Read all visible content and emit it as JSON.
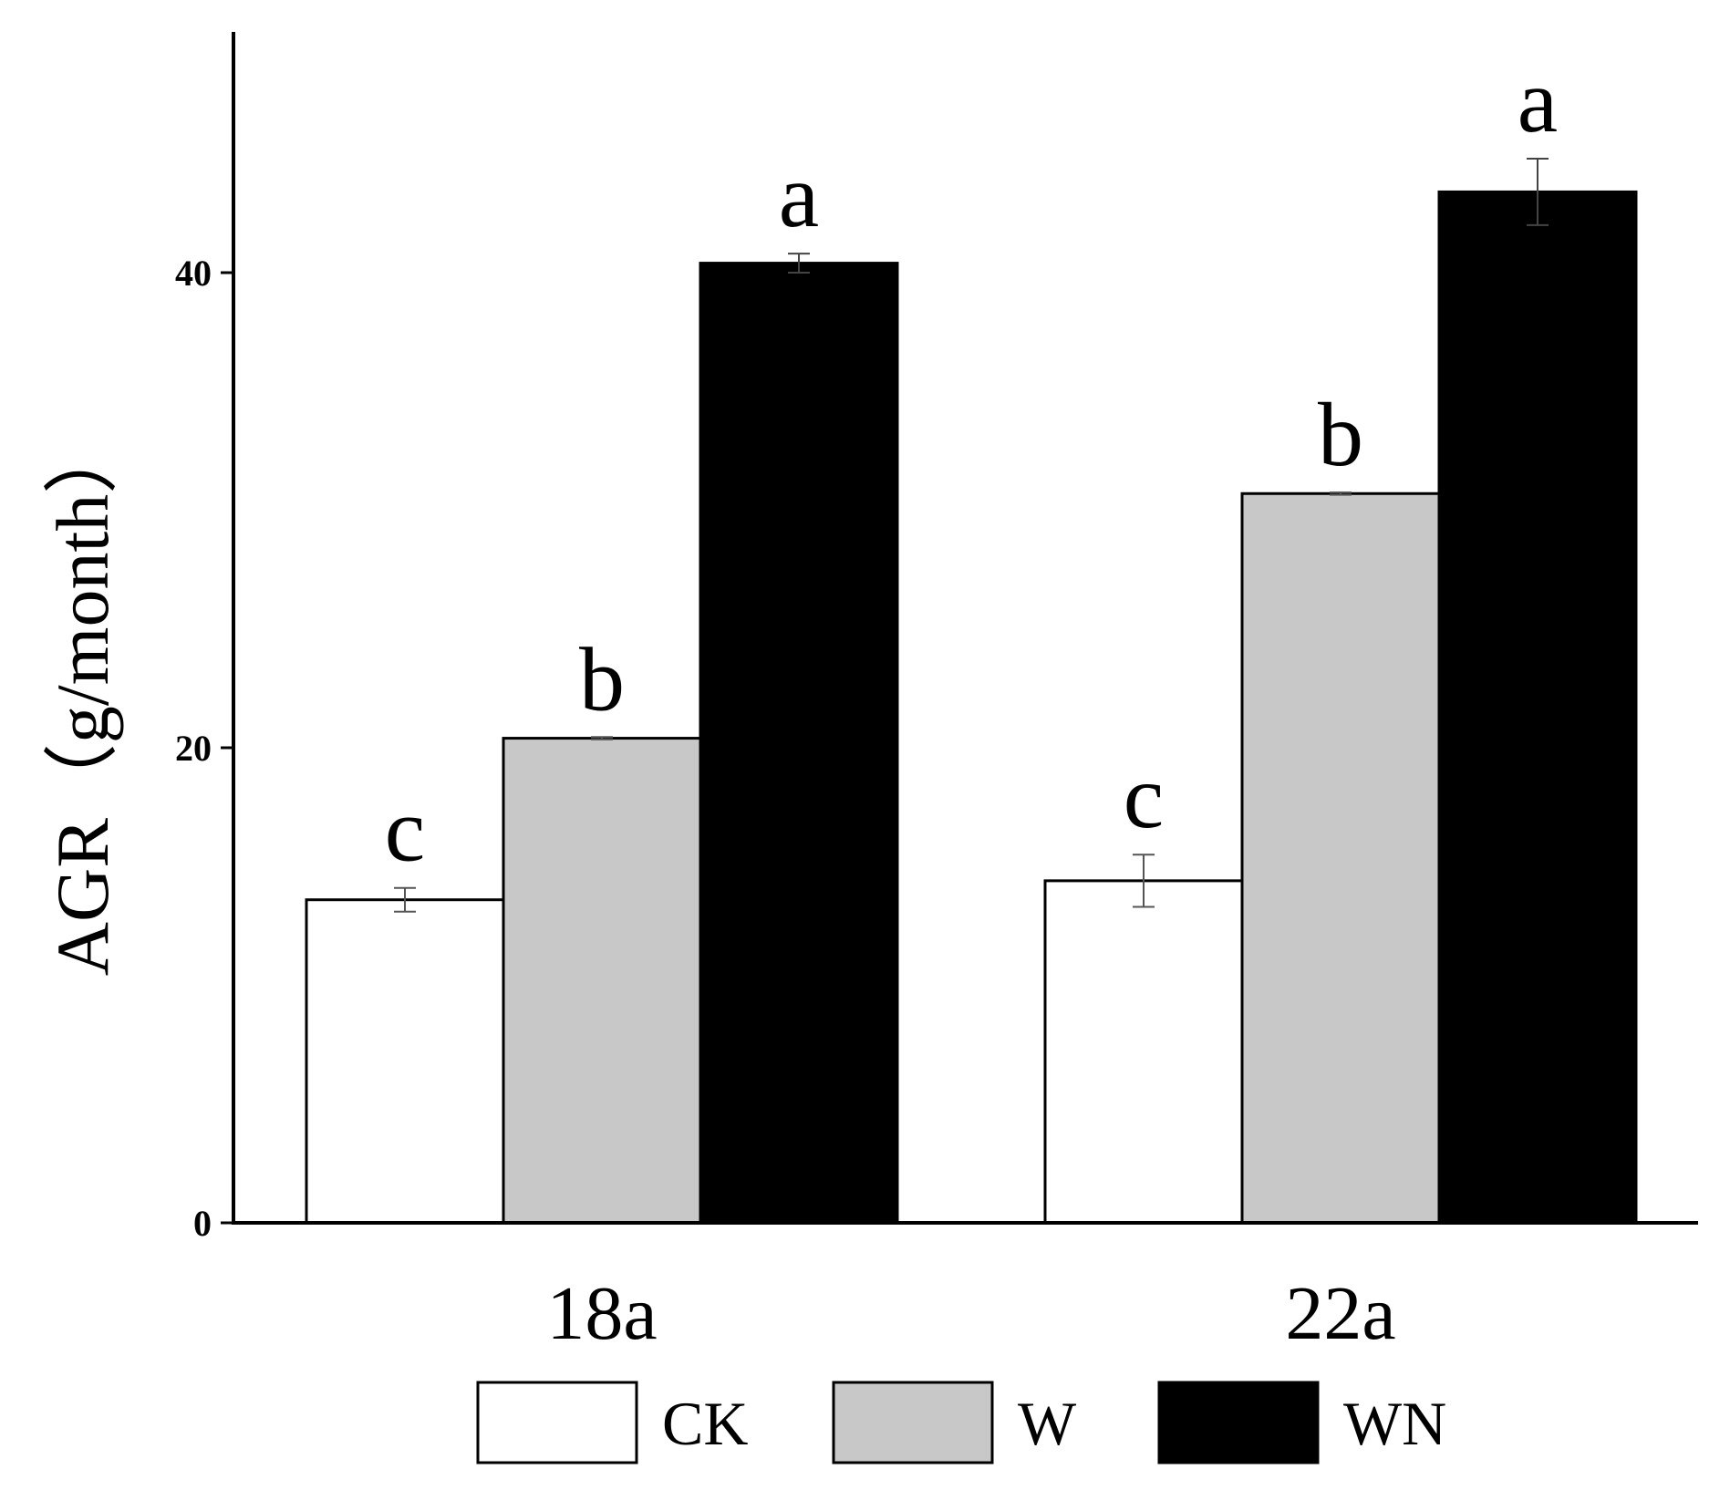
{
  "chart_data": {
    "type": "bar",
    "ylabel": "AGR（g/month）",
    "xlabel": "",
    "ylim": [
      0,
      50
    ],
    "yticks": [
      0,
      20,
      40
    ],
    "categories": [
      "18a",
      "22a"
    ],
    "series": [
      {
        "name": "CK",
        "color": "#ffffff",
        "values": [
          13.6,
          14.4
        ],
        "errors": [
          0.5,
          1.1
        ],
        "letters": [
          "c",
          "c"
        ]
      },
      {
        "name": "W",
        "color": "#c8c8c8",
        "values": [
          20.4,
          30.7
        ],
        "errors": [
          0.05,
          0.05
        ],
        "letters": [
          "b",
          "b"
        ]
      },
      {
        "name": "WN",
        "color": "#000000",
        "values": [
          40.4,
          43.4
        ],
        "errors": [
          0.4,
          1.4
        ],
        "letters": [
          "a",
          "a"
        ]
      }
    ],
    "legend_position": "bottom",
    "grid": false
  }
}
